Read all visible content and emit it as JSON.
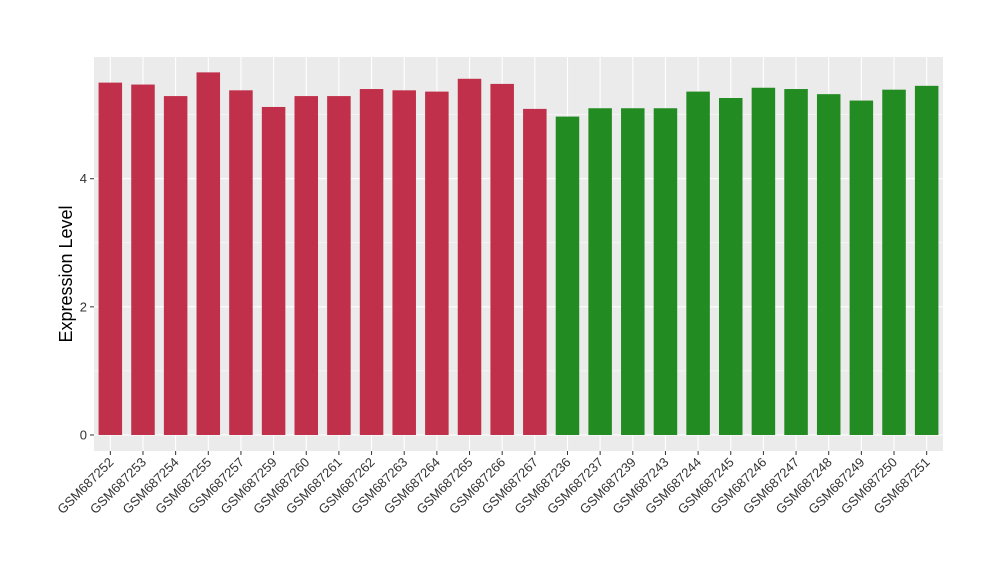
{
  "chart_data": {
    "type": "bar",
    "title": "",
    "xlabel": "",
    "ylabel": "Expression Level",
    "ylim": [
      -0.25,
      5.9
    ],
    "yticks": [
      0,
      2,
      4
    ],
    "grid": true,
    "legend": "none",
    "colors": {
      "panel": "#EBEBEB",
      "grid_major": "#FFFFFF",
      "group_a": "#C0304A",
      "group_b": "#228B22"
    },
    "categories": [
      "GSM687252",
      "GSM687253",
      "GSM687254",
      "GSM687255",
      "GSM687257",
      "GSM687259",
      "GSM687260",
      "GSM687261",
      "GSM687262",
      "GSM687263",
      "GSM687264",
      "GSM687265",
      "GSM687266",
      "GSM687267",
      "GSM687236",
      "GSM687237",
      "GSM687239",
      "GSM687243",
      "GSM687244",
      "GSM687245",
      "GSM687246",
      "GSM687247",
      "GSM687248",
      "GSM687249",
      "GSM687250",
      "GSM687251"
    ],
    "values": [
      5.5,
      5.47,
      5.29,
      5.66,
      5.38,
      5.12,
      5.29,
      5.29,
      5.4,
      5.38,
      5.36,
      5.56,
      5.48,
      5.09,
      4.97,
      5.1,
      5.1,
      5.1,
      5.36,
      5.26,
      5.42,
      5.4,
      5.32,
      5.22,
      5.39,
      5.45
    ],
    "groups": [
      "group_a",
      "group_a",
      "group_a",
      "group_a",
      "group_a",
      "group_a",
      "group_a",
      "group_a",
      "group_a",
      "group_a",
      "group_a",
      "group_a",
      "group_a",
      "group_a",
      "group_b",
      "group_b",
      "group_b",
      "group_b",
      "group_b",
      "group_b",
      "group_b",
      "group_b",
      "group_b",
      "group_b",
      "group_b",
      "group_b"
    ]
  }
}
